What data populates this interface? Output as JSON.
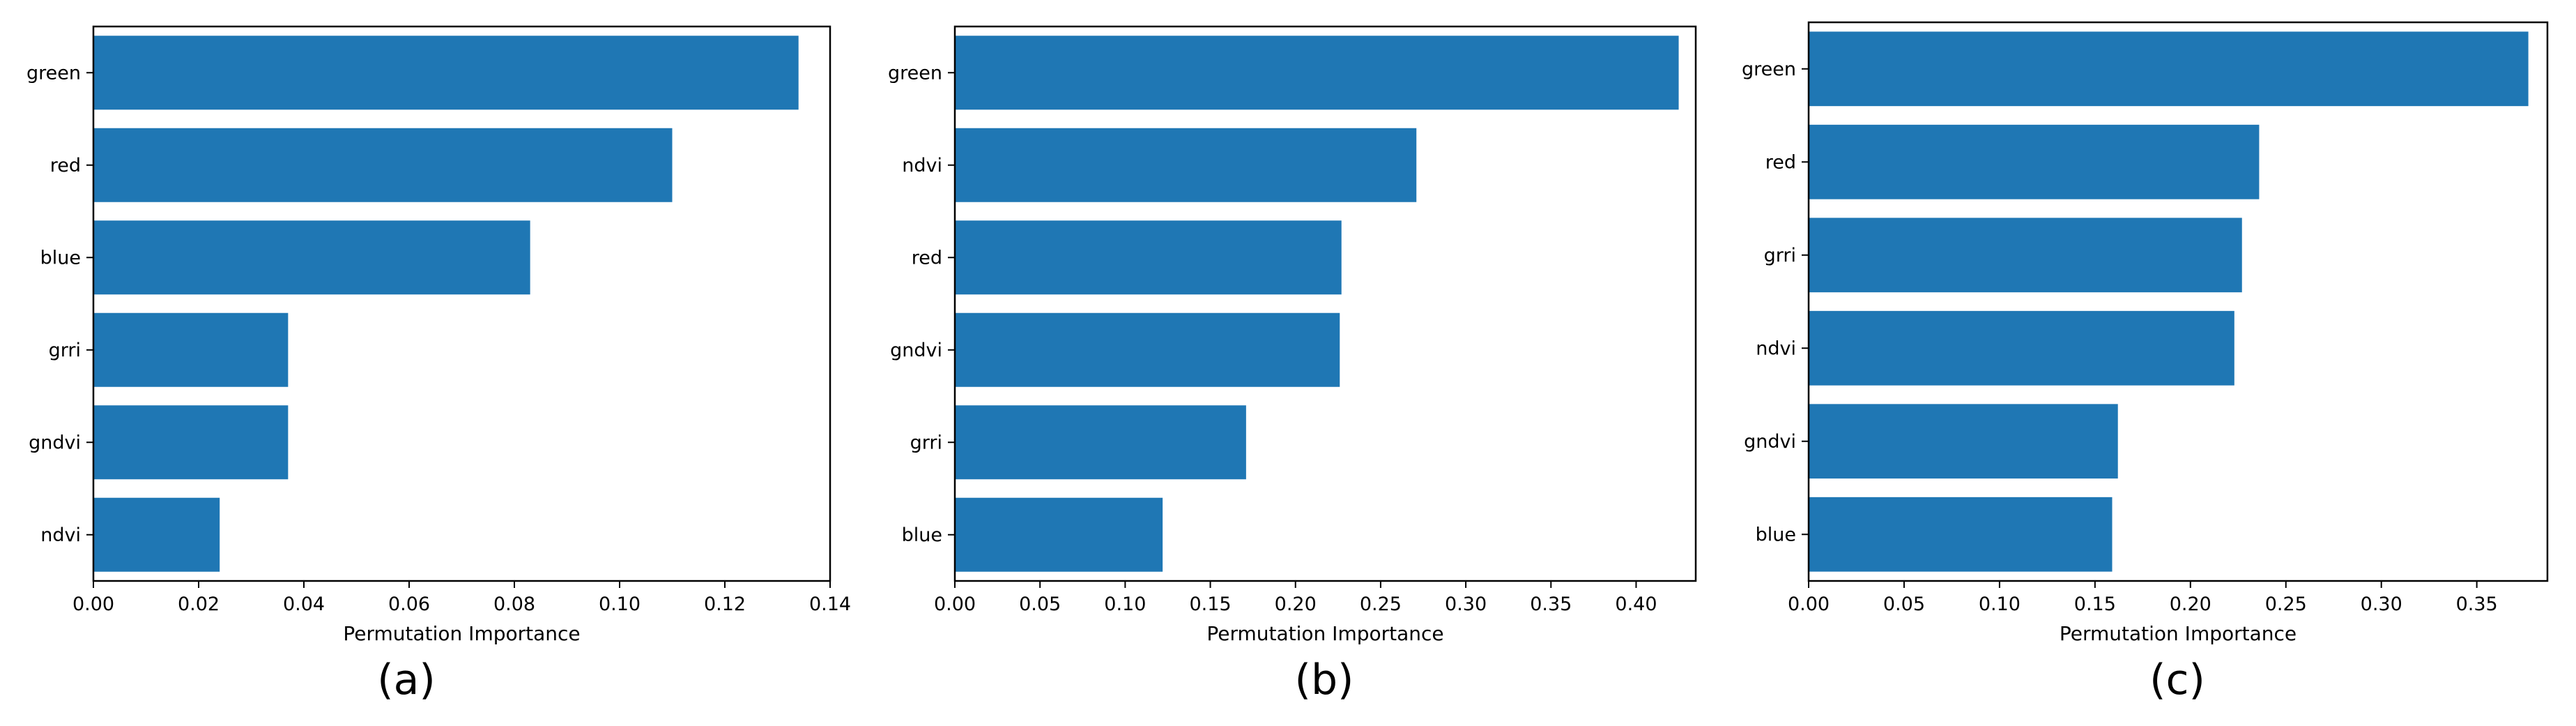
{
  "bar_color": "#1f77b4",
  "chart_data": [
    {
      "type": "bar",
      "orientation": "horizontal",
      "caption": "(a)",
      "xlabel": "Permutation Importance",
      "ylabel": "",
      "categories": [
        "green",
        "red",
        "blue",
        "grri",
        "gndvi",
        "ndvi"
      ],
      "values": [
        0.134,
        0.11,
        0.083,
        0.037,
        0.037,
        0.024
      ],
      "xlim": [
        0,
        0.14
      ],
      "xticks": [
        0.0,
        0.02,
        0.04,
        0.06,
        0.08,
        0.1,
        0.12,
        0.14
      ],
      "xtick_labels": [
        "0.00",
        "0.02",
        "0.04",
        "0.06",
        "0.08",
        "0.10",
        "0.12",
        "0.14"
      ]
    },
    {
      "type": "bar",
      "orientation": "horizontal",
      "caption": "(b)",
      "xlabel": "Permutation Importance",
      "ylabel": "",
      "categories": [
        "green",
        "ndvi",
        "red",
        "gndvi",
        "grri",
        "blue"
      ],
      "values": [
        0.425,
        0.271,
        0.227,
        0.226,
        0.171,
        0.122
      ],
      "xlim": [
        0,
        0.435
      ],
      "xticks": [
        0.0,
        0.05,
        0.1,
        0.15,
        0.2,
        0.25,
        0.3,
        0.35,
        0.4
      ],
      "xtick_labels": [
        "0.00",
        "0.05",
        "0.10",
        "0.15",
        "0.20",
        "0.25",
        "0.30",
        "0.35",
        "0.40"
      ]
    },
    {
      "type": "bar",
      "orientation": "horizontal",
      "caption": "(c)",
      "xlabel": "Permutation Importance",
      "ylabel": "",
      "categories": [
        "green",
        "red",
        "grri",
        "ndvi",
        "gndvi",
        "blue"
      ],
      "values": [
        0.377,
        0.236,
        0.227,
        0.223,
        0.162,
        0.159
      ],
      "xlim": [
        0,
        0.387
      ],
      "xticks": [
        0.0,
        0.05,
        0.1,
        0.15,
        0.2,
        0.25,
        0.3,
        0.35
      ],
      "xtick_labels": [
        "0.00",
        "0.05",
        "0.10",
        "0.15",
        "0.20",
        "0.25",
        "0.30",
        "0.35"
      ]
    }
  ]
}
